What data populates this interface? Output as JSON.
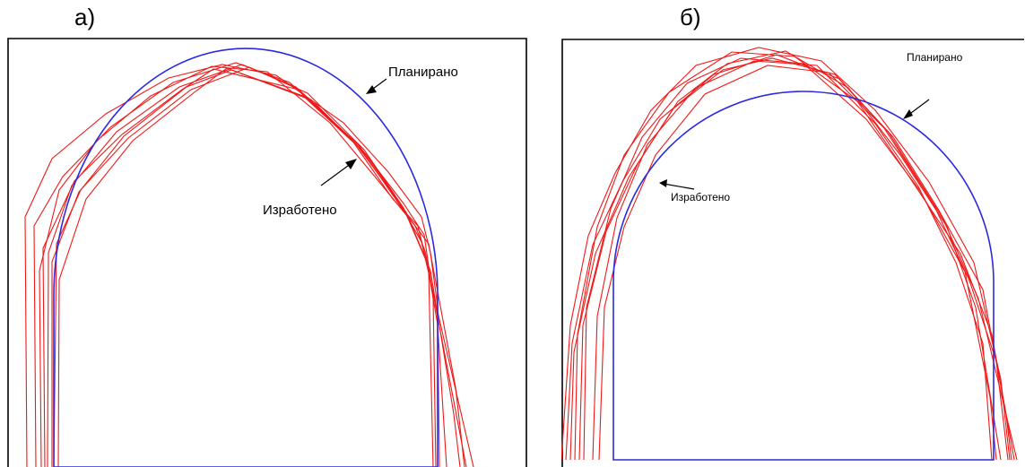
{
  "panels": [
    {
      "id": "a",
      "label": "а)",
      "planned_label": "Планирано",
      "excavated_label": "Изработено"
    },
    {
      "id": "b",
      "label": "б)",
      "planned_label": "Планирано",
      "excavated_label": "Изработено"
    }
  ],
  "colors": {
    "planned": "#2a2ae0",
    "excavated": "#ee1a1a",
    "frame": "#000000"
  }
}
